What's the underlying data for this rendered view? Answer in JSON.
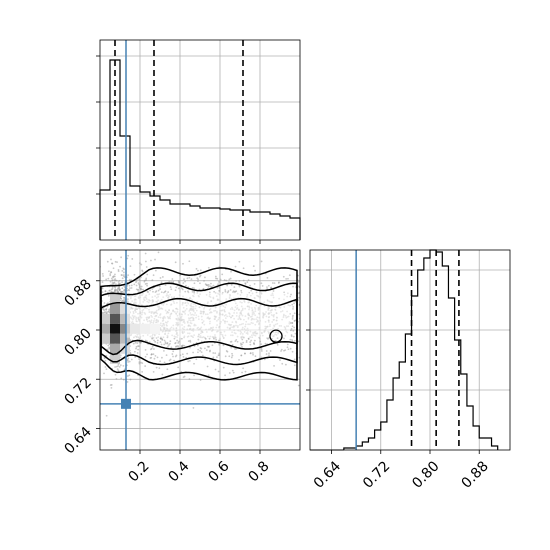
{
  "chart_data": {
    "type": "corner",
    "colors": {
      "truth": "#4682b4",
      "grid": "#b0b0b0",
      "hist": "#000000",
      "contour": "#000000",
      "scatter": "#9e9e9e"
    },
    "grid": true,
    "panels": [
      {
        "id": "hist_p1",
        "type": "histogram",
        "xlim": [
          0.0,
          1.0
        ],
        "ylim": [
          0,
          1
        ],
        "show_tick_labels": false,
        "x_ticks": [
          0.2,
          0.4,
          0.6,
          0.8
        ],
        "y_ticks": [
          0.23,
          0.46,
          0.69,
          0.92
        ],
        "bins": [
          0.0,
          0.05,
          0.1,
          0.15,
          0.2,
          0.25,
          0.3,
          0.35,
          0.4,
          0.45,
          0.5,
          0.55,
          0.6,
          0.65,
          0.7,
          0.75,
          0.8,
          0.85,
          0.9,
          0.95,
          1.0
        ],
        "counts": [
          0.25,
          0.9,
          0.52,
          0.27,
          0.24,
          0.22,
          0.2,
          0.18,
          0.18,
          0.17,
          0.16,
          0.16,
          0.155,
          0.15,
          0.15,
          0.14,
          0.14,
          0.13,
          0.12,
          0.11
        ],
        "quantiles": [
          0.075,
          0.27,
          0.715
        ],
        "truth_x": 0.13
      },
      {
        "id": "scatter_p1_p2",
        "type": "2d-density",
        "xlim": [
          0.0,
          1.0
        ],
        "ylim": [
          0.605,
          0.93
        ],
        "x_ticks": [
          0.2,
          0.4,
          0.6,
          0.8
        ],
        "x_tick_labels": [
          "0.2",
          "0.4",
          "0.6",
          "0.8"
        ],
        "y_ticks": [
          0.64,
          0.72,
          0.8,
          0.88
        ],
        "y_tick_labels": [
          "0.64",
          "0.72",
          "0.80",
          "0.88"
        ],
        "truth": {
          "x": 0.13,
          "y": 0.68
        },
        "density_peak": {
          "x": 0.075,
          "y": 0.802
        }
      },
      {
        "id": "hist_p2",
        "type": "histogram",
        "xlim": [
          0.605,
          0.93
        ],
        "ylim": [
          0,
          1
        ],
        "x_ticks": [
          0.64,
          0.72,
          0.8,
          0.88
        ],
        "x_tick_labels": [
          "0.64",
          "0.72",
          "0.80",
          "0.88"
        ],
        "y_ticks": [
          0.3,
          0.6,
          0.9
        ],
        "bins": [
          0.66,
          0.67,
          0.68,
          0.69,
          0.7,
          0.71,
          0.72,
          0.73,
          0.74,
          0.75,
          0.76,
          0.77,
          0.78,
          0.79,
          0.8,
          0.81,
          0.82,
          0.83,
          0.84,
          0.85,
          0.86,
          0.87,
          0.88,
          0.89,
          0.9,
          0.91
        ],
        "counts": [
          0.01,
          0.01,
          0.02,
          0.04,
          0.06,
          0.1,
          0.14,
          0.25,
          0.36,
          0.44,
          0.58,
          0.77,
          0.9,
          0.96,
          1.0,
          0.99,
          0.92,
          0.76,
          0.55,
          0.38,
          0.22,
          0.12,
          0.06,
          0.06,
          0.02
        ],
        "quantiles": [
          0.77,
          0.81,
          0.847
        ],
        "truth_x": 0.68
      }
    ]
  }
}
